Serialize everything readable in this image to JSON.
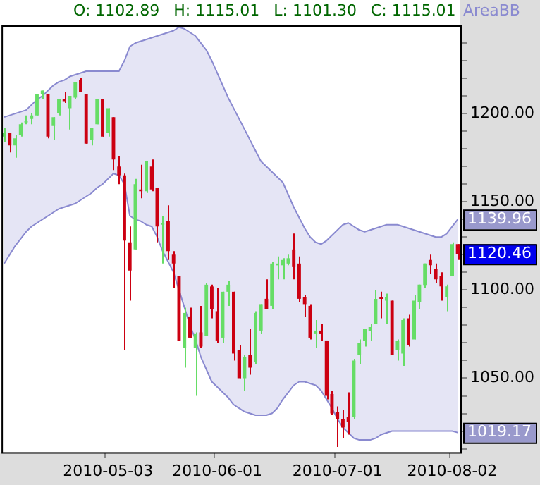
{
  "chart_data": {
    "type": "candlestick",
    "legend": false,
    "categories": [
      null,
      null,
      null,
      null,
      null,
      null,
      null,
      null,
      null,
      null,
      null,
      null,
      null,
      null,
      null,
      null,
      null,
      null,
      null,
      "2010-05-03",
      null,
      null,
      null,
      null,
      null,
      null,
      null,
      null,
      null,
      null,
      null,
      null,
      null,
      null,
      null,
      null,
      null,
      null,
      null,
      "2010-06-01",
      null,
      null,
      null,
      null,
      null,
      null,
      null,
      null,
      null,
      null,
      null,
      null,
      null,
      null,
      null,
      null,
      null,
      null,
      null,
      null,
      null,
      "2010-07-01",
      null,
      null,
      null,
      null,
      null,
      null,
      null,
      null,
      null,
      null,
      null,
      null,
      null,
      null,
      null,
      null,
      null,
      null,
      null,
      null,
      "2010-08-02",
      null
    ],
    "series": [
      {
        "ohlc": [
          [
            1187,
            1192,
            1184,
            1189
          ],
          [
            1189,
            1189,
            1178,
            1182
          ],
          [
            1182,
            1188,
            1175,
            1186
          ],
          [
            1188,
            1195,
            1187,
            1194
          ],
          [
            1195,
            1199,
            1194,
            1196
          ],
          [
            1197,
            1200,
            1194,
            1199
          ],
          [
            1199,
            1211,
            1199,
            1211
          ],
          [
            1211,
            1213,
            1208,
            1213
          ],
          [
            1211,
            1211,
            1186,
            1187
          ],
          [
            1193,
            1198,
            1185,
            1198
          ],
          [
            1200,
            1208,
            1199,
            1208
          ],
          [
            1208,
            1212,
            1206,
            1207
          ],
          [
            1203,
            1210,
            1191,
            1210
          ],
          [
            1209,
            1218,
            1208,
            1218
          ],
          [
            1219,
            1220,
            1212,
            1212
          ],
          [
            1211,
            1211,
            1183,
            1183
          ],
          [
            1185,
            1192,
            1182,
            1192
          ],
          [
            1194,
            1208,
            1194,
            1208
          ],
          [
            1208,
            1208,
            1187,
            1187
          ],
          [
            1189,
            1203,
            1187,
            1203
          ],
          [
            1198,
            1198,
            1168,
            1174
          ],
          [
            1170,
            1176,
            1160,
            1165
          ],
          [
            1165,
            1166,
            1066,
            1128
          ],
          [
            1127,
            1136,
            1094,
            1111
          ],
          [
            1123,
            1163,
            1123,
            1160
          ],
          [
            1157,
            1171,
            1152,
            1156
          ],
          [
            1156,
            1173,
            1155,
            1173
          ],
          [
            1170,
            1174,
            1156,
            1157
          ],
          [
            1158,
            1158,
            1127,
            1136
          ],
          [
            1137,
            1142,
            1115,
            1138
          ],
          [
            1139,
            1148,
            1117,
            1122
          ],
          [
            1120,
            1122,
            1101,
            1115
          ],
          [
            1108,
            1108,
            1071,
            1071
          ],
          [
            1067,
            1090,
            1056,
            1087
          ],
          [
            1085,
            1090,
            1073,
            1073
          ],
          [
            1067,
            1076,
            1040,
            1075
          ],
          [
            1076,
            1091,
            1067,
            1068
          ],
          [
            1074,
            1104,
            1074,
            1103
          ],
          [
            1102,
            1103,
            1084,
            1089
          ],
          [
            1088,
            1101,
            1070,
            1071
          ],
          [
            1073,
            1099,
            1070,
            1099
          ],
          [
            1099,
            1105,
            1091,
            1103
          ],
          [
            1099,
            1099,
            1060,
            1064
          ],
          [
            1066,
            1069,
            1050,
            1050
          ],
          [
            1050,
            1063,
            1043,
            1062
          ],
          [
            1063,
            1078,
            1052,
            1056
          ],
          [
            1059,
            1088,
            1058,
            1087
          ],
          [
            1077,
            1092,
            1075,
            1092
          ],
          [
            1095,
            1106,
            1089,
            1089
          ],
          [
            1091,
            1116,
            1089,
            1115
          ],
          [
            1114,
            1119,
            1106,
            1115
          ],
          [
            1114,
            1118,
            1106,
            1117
          ],
          [
            1115,
            1120,
            1114,
            1118
          ],
          [
            1123,
            1132,
            1106,
            1113
          ],
          [
            1115,
            1119,
            1093,
            1095
          ],
          [
            1096,
            1097,
            1085,
            1092
          ],
          [
            1091,
            1092,
            1072,
            1073
          ],
          [
            1075,
            1083,
            1067,
            1077
          ],
          [
            1077,
            1081,
            1071,
            1075
          ],
          [
            1071,
            1071,
            1038,
            1040
          ],
          [
            1041,
            1043,
            1029,
            1030
          ],
          [
            1031,
            1034,
            1011,
            1027
          ],
          [
            1027,
            1032,
            1016,
            1022
          ],
          [
            1028,
            1042,
            1018,
            1025
          ],
          [
            1028,
            1061,
            1027,
            1060
          ],
          [
            1063,
            1072,
            1058,
            1070
          ],
          [
            1071,
            1078,
            1068,
            1078
          ],
          [
            1077,
            1081,
            1071,
            1079
          ],
          [
            1081,
            1100,
            1081,
            1095
          ],
          [
            1096,
            1099,
            1084,
            1095
          ],
          [
            1094,
            1098,
            1081,
            1096
          ],
          [
            1094,
            1094,
            1063,
            1063
          ],
          [
            1066,
            1072,
            1060,
            1071
          ],
          [
            1064,
            1084,
            1057,
            1083
          ],
          [
            1084,
            1086,
            1068,
            1069
          ],
          [
            1072,
            1097,
            1072,
            1094
          ],
          [
            1093,
            1103,
            1089,
            1103
          ],
          [
            1102.89,
            1115.01,
            1101.3,
            1115.01
          ],
          [
            1117,
            1120,
            1109,
            1114
          ],
          [
            1112,
            1115,
            1104,
            1106
          ],
          [
            1108,
            1110,
            1094,
            1102
          ],
          [
            1096,
            1103,
            1088,
            1102
          ],
          [
            1108,
            1127,
            1108,
            1126
          ],
          [
            1126,
            1126,
            1117,
            1120.46
          ]
        ],
        "colors": [
          "#66dd66",
          "#cc0011",
          "#66dd66",
          "#66dd66",
          "#66dd66",
          "#66dd66",
          "#66dd66",
          "#66dd66",
          "#cc0011",
          "#66dd66",
          "#66dd66",
          "#cc0011",
          "#66dd66",
          "#66dd66",
          "#cc0011",
          "#cc0011",
          "#66dd66",
          "#66dd66",
          "#cc0011",
          "#66dd66",
          "#cc0011",
          "#cc0011",
          "#cc0011",
          "#cc0011",
          "#66dd66",
          "#cc0011",
          "#66dd66",
          "#cc0011",
          "#cc0011",
          "#66dd66",
          "#cc0011",
          "#cc0011",
          "#cc0011",
          "#66dd66",
          "#cc0011",
          "#66dd66",
          "#cc0011",
          "#66dd66",
          "#cc0011",
          "#cc0011",
          "#66dd66",
          "#66dd66",
          "#cc0011",
          "#cc0011",
          "#66dd66",
          "#cc0011",
          "#66dd66",
          "#66dd66",
          "#cc0011",
          "#66dd66",
          "#66dd66",
          "#66dd66",
          "#66dd66",
          "#cc0011",
          "#cc0011",
          "#cc0011",
          "#cc0011",
          "#66dd66",
          "#cc0011",
          "#cc0011",
          "#cc0011",
          "#cc0011",
          "#cc0011",
          "#cc0011",
          "#66dd66",
          "#66dd66",
          "#66dd66",
          "#66dd66",
          "#66dd66",
          "#cc0011",
          "#66dd66",
          "#cc0011",
          "#66dd66",
          "#66dd66",
          "#cc0011",
          "#66dd66",
          "#66dd66",
          "#66dd66",
          "#cc0011",
          "#cc0011",
          "#cc0011",
          "#66dd66",
          "#66dd66",
          "#cc0011"
        ]
      },
      {
        "name": "AreaBB",
        "type": "area",
        "color": "#8a8ad0",
        "values": [
          1198,
          1199,
          1200,
          1201,
          1202,
          1205,
          1208,
          1210,
          1213,
          1216,
          1218,
          1219,
          1221,
          1222,
          1223,
          1224,
          1224,
          1224,
          1224,
          1224,
          1224,
          1224,
          1230,
          1238,
          1240,
          1241,
          1242,
          1243,
          1244,
          1245,
          1246,
          1247,
          1249,
          1248,
          1246,
          1244,
          1240,
          1236,
          1230,
          1223,
          1216,
          1209,
          1203,
          1197,
          1191,
          1185,
          1179,
          1173,
          1170,
          1167,
          1164,
          1161,
          1154,
          1147,
          1141,
          1135,
          1130,
          1127,
          1126,
          1128,
          1131,
          1134,
          1137,
          1138,
          1136,
          1134,
          1133,
          1134,
          1135,
          1136,
          1137,
          1137,
          1137,
          1136,
          1135,
          1134,
          1133,
          1132,
          1131,
          1130,
          1130,
          1132,
          1136,
          1139.96
        ]
      },
      {
        "type": "line",
        "color": "#8a8ad0",
        "values": [
          1115,
          1120,
          1125,
          1129,
          1133,
          1136,
          1138,
          1140,
          1142,
          1144,
          1146,
          1147,
          1148,
          1149,
          1151,
          1153,
          1155,
          1158,
          1160,
          1163,
          1166,
          1165,
          1160,
          1142,
          1140,
          1139,
          1137,
          1136,
          1130,
          1122,
          1116,
          1110,
          1100,
          1090,
          1080,
          1072,
          1062,
          1055,
          1048,
          1045,
          1042,
          1039,
          1035,
          1033,
          1031,
          1030,
          1029,
          1029,
          1029,
          1030,
          1033,
          1038,
          1042,
          1046,
          1048,
          1048,
          1047,
          1046,
          1043,
          1038,
          1033,
          1027,
          1022,
          1019,
          1016,
          1015,
          1015,
          1015,
          1016,
          1018,
          1019,
          1020,
          1020,
          1020,
          1020,
          1020,
          1020,
          1020,
          1020,
          1020,
          1020,
          1020,
          1020,
          1019.17
        ]
      }
    ],
    "ylim": [
      1008,
      1250
    ],
    "yticks": [
      {
        "value": 1010,
        "label": null
      },
      {
        "value": 1020,
        "label": null
      },
      {
        "value": 1030,
        "label": null
      },
      {
        "value": 1040,
        "label": null
      },
      {
        "value": 1050,
        "label": "1050.00"
      },
      {
        "value": 1060,
        "label": null
      },
      {
        "value": 1070,
        "label": null
      },
      {
        "value": 1080,
        "label": null
      },
      {
        "value": 1090,
        "label": null
      },
      {
        "value": 1100,
        "label": "1100.00"
      },
      {
        "value": 1110,
        "label": null
      },
      {
        "value": 1120,
        "label": null
      },
      {
        "value": 1130,
        "label": null
      },
      {
        "value": 1140,
        "label": null
      },
      {
        "value": 1150,
        "label": "1150.00"
      },
      {
        "value": 1160,
        "label": null
      },
      {
        "value": 1170,
        "label": null
      },
      {
        "value": 1180,
        "label": null
      },
      {
        "value": 1190,
        "label": null
      },
      {
        "value": 1200,
        "label": "1200.00"
      },
      {
        "value": 1210,
        "label": null
      },
      {
        "value": 1220,
        "label": null
      },
      {
        "value": 1230,
        "label": null
      },
      {
        "value": 1240,
        "label": null
      }
    ],
    "grid": false,
    "annotations": [
      "O: 1102.89",
      "H: 1115.01",
      "L: 1101.30",
      "C: 1115.01",
      "1139.96",
      "1120.46",
      "1019.17"
    ]
  }
}
